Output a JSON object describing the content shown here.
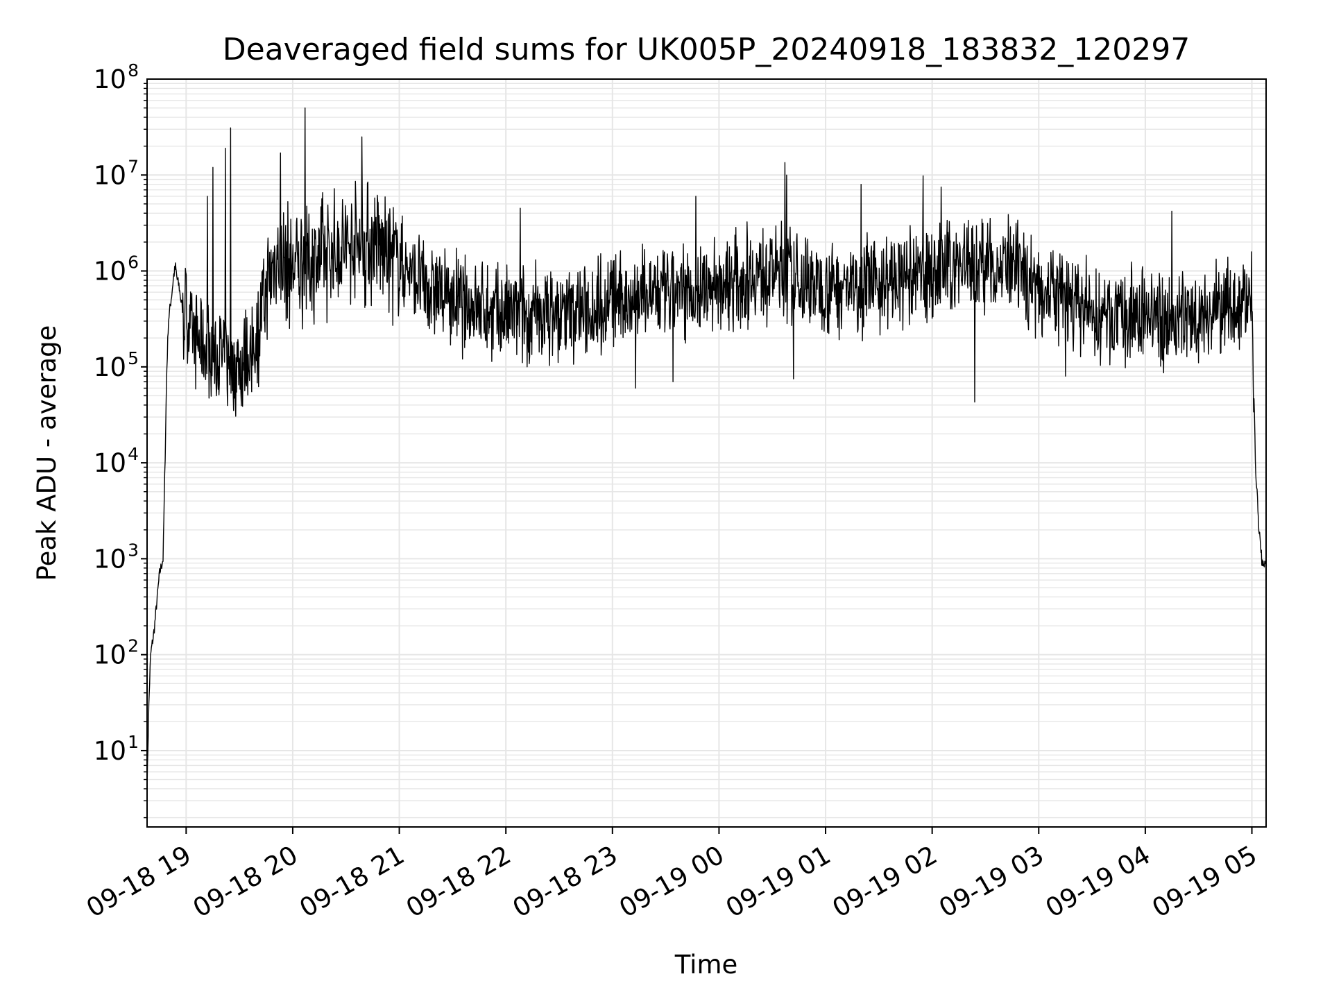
{
  "chart_data": {
    "type": "line",
    "title": "Deaveraged field sums for UK005P_20240918_183832_120297",
    "xlabel": "Time",
    "ylabel": "Peak ADU - average",
    "yscale": "log",
    "ylim": [
      1.6,
      100000000
    ],
    "xlim": [
      "2024-09-18 18:38",
      "2024-09-19 05:08"
    ],
    "grid": true,
    "grid_color": "#e6e6e6",
    "line_color": "#000000",
    "x_ticks": [
      "09-18 19",
      "09-18 20",
      "09-18 21",
      "09-18 22",
      "09-18 23",
      "09-19 00",
      "09-19 01",
      "09-19 02",
      "09-19 03",
      "09-19 04",
      "09-19 05"
    ],
    "x_tick_times": [
      "2024-09-18 19:00",
      "2024-09-18 20:00",
      "2024-09-18 21:00",
      "2024-09-18 22:00",
      "2024-09-18 23:00",
      "2024-09-19 00:00",
      "2024-09-19 01:00",
      "2024-09-19 02:00",
      "2024-09-19 03:00",
      "2024-09-19 04:00",
      "2024-09-19 05:00"
    ],
    "y_ticks": [
      {
        "base": "10",
        "exp": "1",
        "value": 10
      },
      {
        "base": "10",
        "exp": "2",
        "value": 100
      },
      {
        "base": "10",
        "exp": "3",
        "value": 1000
      },
      {
        "base": "10",
        "exp": "4",
        "value": 10000
      },
      {
        "base": "10",
        "exp": "5",
        "value": 100000
      },
      {
        "base": "10",
        "exp": "6",
        "value": 1000000
      },
      {
        "base": "10",
        "exp": "7",
        "value": 10000000
      },
      {
        "base": "10",
        "exp": "8",
        "value": 100000000
      }
    ],
    "series": [
      {
        "x": [
          "2024-09-18 18:38",
          "2024-09-18 18:39",
          "2024-09-18 18:40",
          "2024-09-18 18:42",
          "2024-09-18 18:44",
          "2024-09-18 18:45",
          "2024-09-18 18:47",
          "2024-09-18 18:48",
          "2024-09-18 18:49",
          "2024-09-18 18:50",
          "2024-09-18 18:52",
          "2024-09-18 18:53",
          "2024-09-18 18:54",
          "2024-09-18 18:55",
          "2024-09-18 18:56",
          "2024-09-18 18:57",
          "2024-09-18 18:58",
          "2024-09-18 19:00",
          "2024-09-18 19:04",
          "2024-09-18 19:08",
          "2024-09-18 19:12",
          "2024-09-18 19:16",
          "2024-09-18 19:20",
          "2024-09-18 19:24",
          "2024-09-18 19:28",
          "2024-09-18 19:32",
          "2024-09-18 19:36",
          "2024-09-18 19:40",
          "2024-09-18 19:44",
          "2024-09-18 19:48",
          "2024-09-18 19:52",
          "2024-09-18 19:56",
          "2024-09-18 20:00",
          "2024-09-18 20:10",
          "2024-09-18 20:20",
          "2024-09-18 20:30",
          "2024-09-18 20:40",
          "2024-09-18 20:50",
          "2024-09-18 21:00",
          "2024-09-18 21:15",
          "2024-09-18 21:30",
          "2024-09-18 21:45",
          "2024-09-18 22:00",
          "2024-09-18 22:15",
          "2024-09-18 22:30",
          "2024-09-18 22:45",
          "2024-09-18 23:00",
          "2024-09-18 23:15",
          "2024-09-18 23:30",
          "2024-09-18 23:45",
          "2024-09-19 00:00",
          "2024-09-19 00:15",
          "2024-09-19 00:30",
          "2024-09-19 00:45",
          "2024-09-19 01:00",
          "2024-09-19 01:15",
          "2024-09-19 01:30",
          "2024-09-19 01:45",
          "2024-09-19 02:00",
          "2024-09-19 02:15",
          "2024-09-19 02:30",
          "2024-09-19 02:45",
          "2024-09-19 03:00",
          "2024-09-19 03:15",
          "2024-09-19 03:30",
          "2024-09-19 03:45",
          "2024-09-19 04:00",
          "2024-09-19 04:15",
          "2024-09-19 04:30",
          "2024-09-19 04:45",
          "2024-09-19 05:00",
          "2024-09-19 05:02",
          "2024-09-19 05:04",
          "2024-09-19 05:06",
          "2024-09-19 05:08"
        ],
        "y": [
          4,
          30,
          100,
          180,
          450,
          700,
          1000,
          8000,
          80000,
          300000,
          600000,
          900000,
          1100000,
          800000,
          700000,
          500000,
          400000,
          350000,
          200000,
          180000,
          150000,
          130000,
          120000,
          110000,
          100000,
          110000,
          130000,
          200000,
          500000,
          1000000,
          1500000,
          1200000,
          1100000,
          1300000,
          1500000,
          1800000,
          2000000,
          1800000,
          1200000,
          700000,
          500000,
          400000,
          350000,
          350000,
          350000,
          400000,
          500000,
          550000,
          550000,
          600000,
          700000,
          900000,
          1000000,
          800000,
          700000,
          700000,
          750000,
          800000,
          900000,
          1200000,
          1200000,
          1000000,
          700000,
          500000,
          350000,
          300000,
          350000,
          300000,
          350000,
          400000,
          500000,
          10000,
          2000,
          800,
          1000
        ]
      }
    ],
    "spikes": [
      {
        "x": "2024-09-18 19:12",
        "y": 6000000
      },
      {
        "x": "2024-09-18 19:15",
        "y": 12000000
      },
      {
        "x": "2024-09-18 19:22",
        "y": 19000000
      },
      {
        "x": "2024-09-18 19:25",
        "y": 31000000
      },
      {
        "x": "2024-09-18 19:53",
        "y": 17000000
      },
      {
        "x": "2024-09-18 20:07",
        "y": 50000000
      },
      {
        "x": "2024-09-18 20:39",
        "y": 25000000
      },
      {
        "x": "2024-09-18 22:08",
        "y": 4500000
      },
      {
        "x": "2024-09-18 23:47",
        "y": 6000000
      },
      {
        "x": "2024-09-19 00:37",
        "y": 13500000
      },
      {
        "x": "2024-09-19 00:38",
        "y": 10000000
      },
      {
        "x": "2024-09-19 01:20",
        "y": 8000000
      },
      {
        "x": "2024-09-19 01:55",
        "y": 9800000
      },
      {
        "x": "2024-09-19 02:05",
        "y": 7500000
      },
      {
        "x": "2024-09-19 04:15",
        "y": 4200000
      }
    ],
    "dips": [
      {
        "x": "2024-09-18 19:17",
        "y": 50000
      },
      {
        "x": "2024-09-18 19:37",
        "y": 55000
      },
      {
        "x": "2024-09-18 22:12",
        "y": 100000
      },
      {
        "x": "2024-09-18 23:13",
        "y": 60000
      },
      {
        "x": "2024-09-18 23:34",
        "y": 70000
      },
      {
        "x": "2024-09-19 00:42",
        "y": 75000
      },
      {
        "x": "2024-09-19 02:24",
        "y": 43000
      },
      {
        "x": "2024-09-19 03:15",
        "y": 80000
      }
    ]
  }
}
